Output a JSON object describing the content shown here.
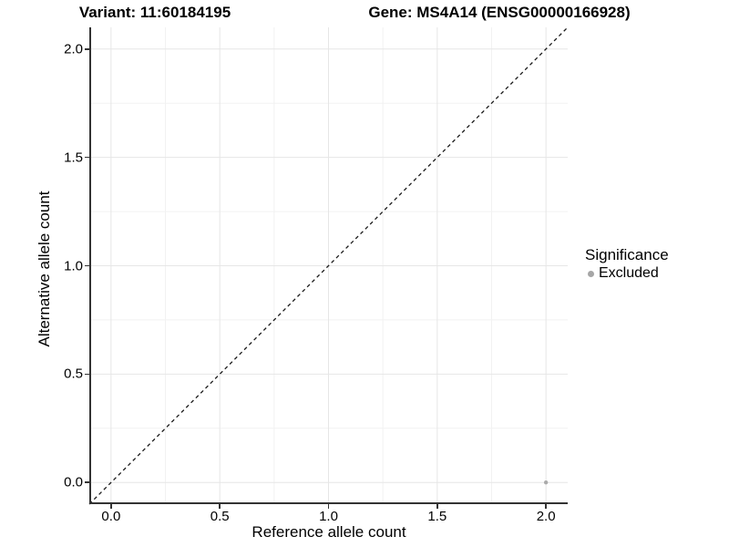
{
  "titles": {
    "variant": "Variant: 11:60184195",
    "gene": "Gene: MS4A14 (ENSG00000166928)"
  },
  "legend": {
    "title": "Significance",
    "entries": [
      {
        "label": "Excluded",
        "color": "#a6a6a6"
      }
    ]
  },
  "colors": {
    "background": "#ffffff",
    "grid_major": "#e6e6e6",
    "grid_minor": "#f2f2f2",
    "axis_line": "#333333",
    "reference_line": "#1a1a1a",
    "point": "#ababab",
    "text": "#000000"
  },
  "chart_data": {
    "type": "scatter",
    "title_left": "Variant: 11:60184195",
    "title_right": "Gene: MS4A14 (ENSG00000166928)",
    "xlabel": "Reference allele count",
    "ylabel": "Alternative allele count",
    "xlim": [
      0,
      2
    ],
    "ylim": [
      0,
      2
    ],
    "expansion_mult": 0.05,
    "x_ticks": [
      0.0,
      0.5,
      1.0,
      1.5,
      2.0
    ],
    "y_ticks": [
      0.0,
      0.5,
      1.0,
      1.5,
      2.0
    ],
    "x_tick_labels": [
      "0.0",
      "0.5",
      "1.0",
      "1.5",
      "2.0"
    ],
    "y_tick_labels": [
      "0.0",
      "0.5",
      "1.0",
      "1.5",
      "2.0"
    ],
    "x_minor_ticks": [
      0.25,
      0.75,
      1.25,
      1.75
    ],
    "y_minor_ticks": [
      0.25,
      0.75,
      1.25,
      1.75
    ],
    "grid": true,
    "legend_position": "right",
    "reference_line": {
      "slope": 1,
      "intercept": 0,
      "style": "dashed"
    },
    "series": [
      {
        "name": "Excluded",
        "color": "#ababab",
        "marker": "circle",
        "marker_radius": 2.2,
        "points": [
          {
            "x": 2.0,
            "y": 0.0
          }
        ]
      }
    ]
  }
}
